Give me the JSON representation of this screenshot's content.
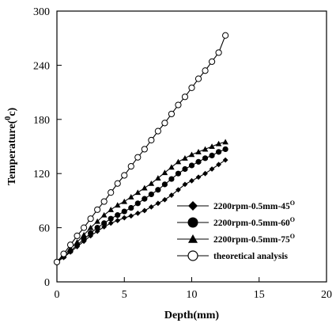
{
  "chart_data": {
    "type": "line",
    "title": "",
    "xlabel": "Depth(mm)",
    "ylabel_main": "Temperature(",
    "ylabel_sup": "0",
    "ylabel_end": "c)",
    "xlim": [
      0,
      20
    ],
    "ylim": [
      0,
      300
    ],
    "xticks": [
      0,
      5,
      10,
      15,
      20
    ],
    "yticks": [
      0,
      60,
      120,
      180,
      240,
      300
    ],
    "grid": false,
    "legend_position": "bottom-right",
    "series": [
      {
        "name_main": "2200rpm-0.5mm-45",
        "name_sup": "O",
        "marker": "diamond",
        "color": "#000000",
        "x": [
          0,
          0.5,
          1,
          1.5,
          2,
          2.5,
          3,
          3.5,
          4,
          4.5,
          5,
          5.5,
          6,
          6.5,
          7,
          7.5,
          8,
          8.5,
          9,
          9.5,
          10,
          10.5,
          11,
          11.5,
          12,
          12.5
        ],
        "y": [
          22,
          27,
          33,
          39,
          45,
          51,
          56,
          61,
          65,
          68,
          71,
          73,
          76,
          79,
          83,
          87,
          91,
          96,
          102,
          108,
          112,
          116,
          120,
          125,
          130,
          135
        ]
      },
      {
        "name_main": "2200rpm-0.5mm-60",
        "name_sup": "O",
        "marker": "circle",
        "color": "#000000",
        "x": [
          0,
          0.5,
          1,
          1.5,
          2,
          2.5,
          3,
          3.5,
          4,
          4.5,
          5,
          5.5,
          6,
          6.5,
          7,
          7.5,
          8,
          8.5,
          9,
          9.5,
          10,
          10.5,
          11,
          11.5,
          12,
          12.5
        ],
        "y": [
          22,
          28,
          34,
          41,
          47,
          54,
          60,
          65,
          70,
          74,
          78,
          82,
          87,
          92,
          97,
          102,
          108,
          114,
          120,
          125,
          129,
          133,
          137,
          140,
          144,
          147
        ]
      },
      {
        "name_main": "2200rpm-0.5mm-75",
        "name_sup": "O",
        "marker": "triangle",
        "color": "#000000",
        "x": [
          0,
          0.5,
          1,
          1.5,
          2,
          2.5,
          3,
          3.5,
          4,
          4.5,
          5,
          5.5,
          6,
          6.5,
          7,
          7.5,
          8,
          8.5,
          9,
          9.5,
          10,
          10.5,
          11,
          11.5,
          12,
          12.5
        ],
        "y": [
          23,
          29,
          37,
          44,
          52,
          60,
          67,
          74,
          80,
          85,
          89,
          94,
          99,
          104,
          109,
          115,
          121,
          127,
          133,
          137,
          141,
          144,
          147,
          150,
          153,
          155
        ]
      },
      {
        "name_main": "theoretical analysis",
        "name_sup": "",
        "marker": "open-circle",
        "color": "#000000",
        "x": [
          0,
          0.5,
          1,
          1.5,
          2,
          2.5,
          3,
          3.5,
          4,
          4.5,
          5,
          5.5,
          6,
          6.5,
          7,
          7.5,
          8,
          8.5,
          9,
          9.5,
          10,
          10.5,
          11,
          11.5,
          12,
          12.5
        ],
        "y": [
          22,
          31,
          41,
          51,
          60,
          70,
          80,
          89,
          99,
          109,
          118,
          128,
          138,
          147,
          157,
          167,
          176,
          186,
          196,
          205,
          215,
          225,
          234,
          244,
          254,
          273
        ]
      }
    ]
  }
}
